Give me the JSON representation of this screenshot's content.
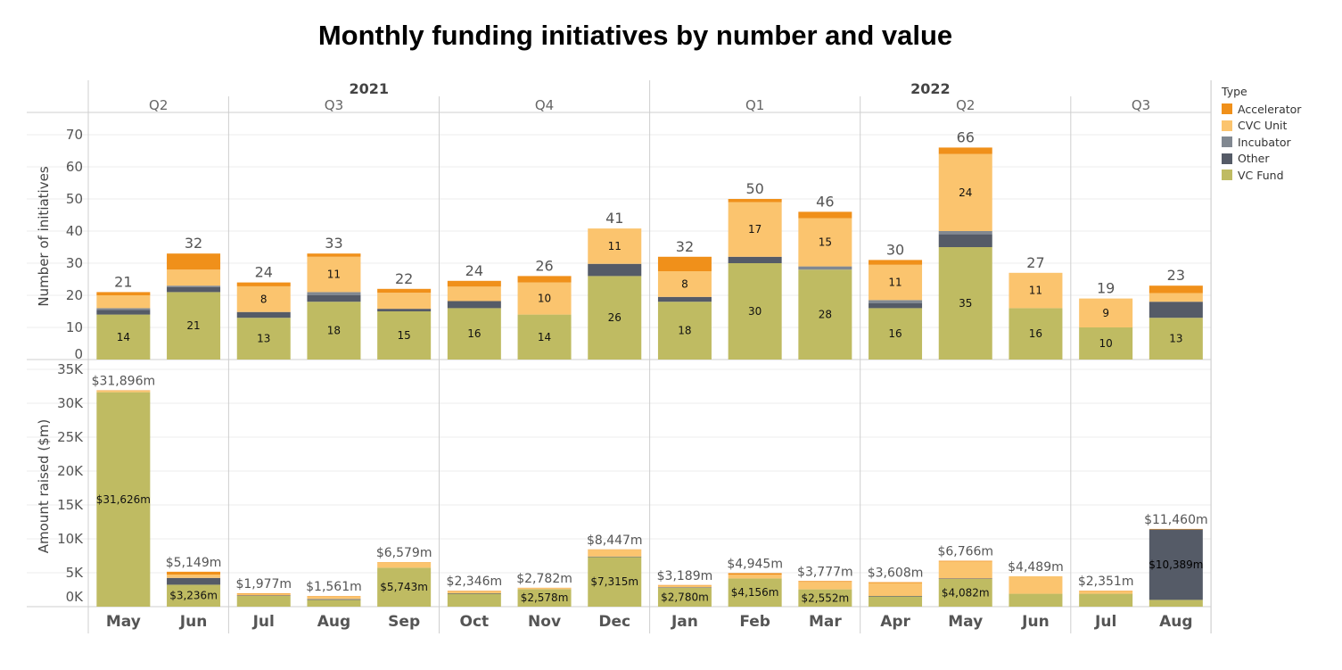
{
  "chart_data": {
    "title": "Monthly funding initiatives by number and value",
    "type": "bar",
    "stacked": true,
    "years": [
      {
        "label": "2021",
        "first": 0,
        "last": 7
      },
      {
        "label": "2022",
        "first": 8,
        "last": 15
      }
    ],
    "quarters": [
      {
        "label": "Q2",
        "first": 0,
        "last": 1
      },
      {
        "label": "Q3",
        "first": 2,
        "last": 4
      },
      {
        "label": "Q4",
        "first": 5,
        "last": 7
      },
      {
        "label": "Q1",
        "first": 8,
        "last": 10
      },
      {
        "label": "Q2",
        "first": 11,
        "last": 13
      },
      {
        "label": "Q3",
        "first": 14,
        "last": 15
      }
    ],
    "categories": [
      "May",
      "Jun",
      "Jul",
      "Aug",
      "Sep",
      "Oct",
      "Nov",
      "Dec",
      "Jan",
      "Feb",
      "Mar",
      "Apr",
      "May",
      "Jun",
      "Jul",
      "Aug"
    ],
    "legend": {
      "title": "Type",
      "items": [
        {
          "name": "Accelerator",
          "color": "#F0901A"
        },
        {
          "name": "CVC Unit",
          "color": "#FBC46E"
        },
        {
          "name": "Incubator",
          "color": "#818891"
        },
        {
          "name": "Other",
          "color": "#555B67"
        },
        {
          "name": "VC Fund",
          "color": "#BFBB62"
        }
      ]
    },
    "count_panel": {
      "ylabel": "Number of initiatives",
      "ylim": [
        0,
        75
      ],
      "yticks": [
        "0",
        "10",
        "20",
        "30",
        "40",
        "50",
        "60",
        "70"
      ],
      "series": [
        {
          "name": "VC Fund",
          "values": [
            14,
            21,
            13,
            18,
            15,
            16,
            14,
            26,
            18,
            30,
            28,
            16,
            35,
            16,
            10,
            13
          ]
        },
        {
          "name": "Other",
          "values": [
            1.5,
            1.5,
            1.8,
            2,
            0.8,
            2.2,
            0,
            3.8,
            1.5,
            2,
            0,
            1.5,
            4,
            0,
            0,
            5
          ]
        },
        {
          "name": "Incubator",
          "values": [
            0.5,
            0.5,
            0,
            1,
            0,
            0,
            0,
            0,
            0,
            0,
            1,
            1,
            1,
            0,
            0,
            0
          ]
        },
        {
          "name": "CVC Unit",
          "values": [
            4,
            5,
            8,
            11,
            5,
            4.5,
            10,
            11,
            8,
            17,
            15,
            11,
            24,
            11,
            9,
            2.7
          ]
        },
        {
          "name": "Accelerator",
          "values": [
            1,
            5,
            1.2,
            1,
            1.2,
            1.8,
            2,
            0,
            4.5,
            1,
            2,
            1.5,
            2,
            0,
            0,
            2.3
          ]
        }
      ],
      "segment_labels": {
        "VC Fund": [
          "14",
          "21",
          "13",
          "18",
          "15",
          "16",
          "14",
          "26",
          "18",
          "30",
          "28",
          "16",
          "35",
          "16",
          "10",
          "13"
        ],
        "CVC Unit": [
          "",
          "",
          "8",
          "11",
          "",
          "",
          "10",
          "11",
          "8",
          "17",
          "15",
          "11",
          "24",
          "11",
          "9",
          ""
        ]
      },
      "totals": [
        "21",
        "32",
        "24",
        "33",
        "22",
        "24",
        "26",
        "41",
        "32",
        "50",
        "46",
        "30",
        "66",
        "27",
        "19",
        "23"
      ]
    },
    "value_panel": {
      "ylabel": "Amount raised ($m)",
      "ylim": [
        0,
        36000
      ],
      "yticks": [
        "0K",
        "5K",
        "10K",
        "15K",
        "20K",
        "25K",
        "30K",
        "35K"
      ],
      "series": [
        {
          "name": "VC Fund",
          "values": [
            31626,
            3236,
            1580,
            1000,
            5743,
            1900,
            2578,
            7315,
            2780,
            4156,
            2552,
            1500,
            4082,
            1900,
            1900,
            1000
          ]
        },
        {
          "name": "Other",
          "values": [
            0,
            1000,
            80,
            100,
            0,
            80,
            0,
            80,
            80,
            0,
            0,
            80,
            80,
            0,
            0,
            10389
          ]
        },
        {
          "name": "Incubator",
          "values": [
            0,
            0,
            0,
            40,
            0,
            0,
            0,
            0,
            0,
            0,
            0,
            0,
            0,
            0,
            0,
            0
          ]
        },
        {
          "name": "CVC Unit",
          "values": [
            200,
            500,
            250,
            360,
            800,
            300,
            170,
            1000,
            250,
            550,
            1100,
            1900,
            2500,
            2589,
            400,
            0
          ]
        },
        {
          "name": "Accelerator",
          "values": [
            70,
            413,
            67,
            61,
            36,
            66,
            34,
            52,
            79,
            239,
            125,
            128,
            104,
            0,
            51,
            71
          ]
        }
      ],
      "segment_labels": {
        "VC Fund": [
          "$31,626m",
          "$3,236m",
          "",
          "",
          "$5,743m",
          "",
          "$2,578m",
          "$7,315m",
          "$2,780m",
          "$4,156m",
          "$2,552m",
          "",
          "$4,082m",
          "",
          "",
          ""
        ],
        "Other": [
          "",
          "",
          "",
          "",
          "",
          "",
          "",
          "",
          "",
          "",
          "",
          "",
          "",
          "",
          "",
          "$10,389m"
        ]
      },
      "totals": [
        "$31,896m",
        "$5,149m",
        "$1,977m",
        "$1,561m",
        "$6,579m",
        "$2,346m",
        "$2,782m",
        "$8,447m",
        "$3,189m",
        "$4,945m",
        "$3,777m",
        "$3,608m",
        "$6,766m",
        "$4,489m",
        "$2,351m",
        "$11,460m"
      ]
    }
  }
}
